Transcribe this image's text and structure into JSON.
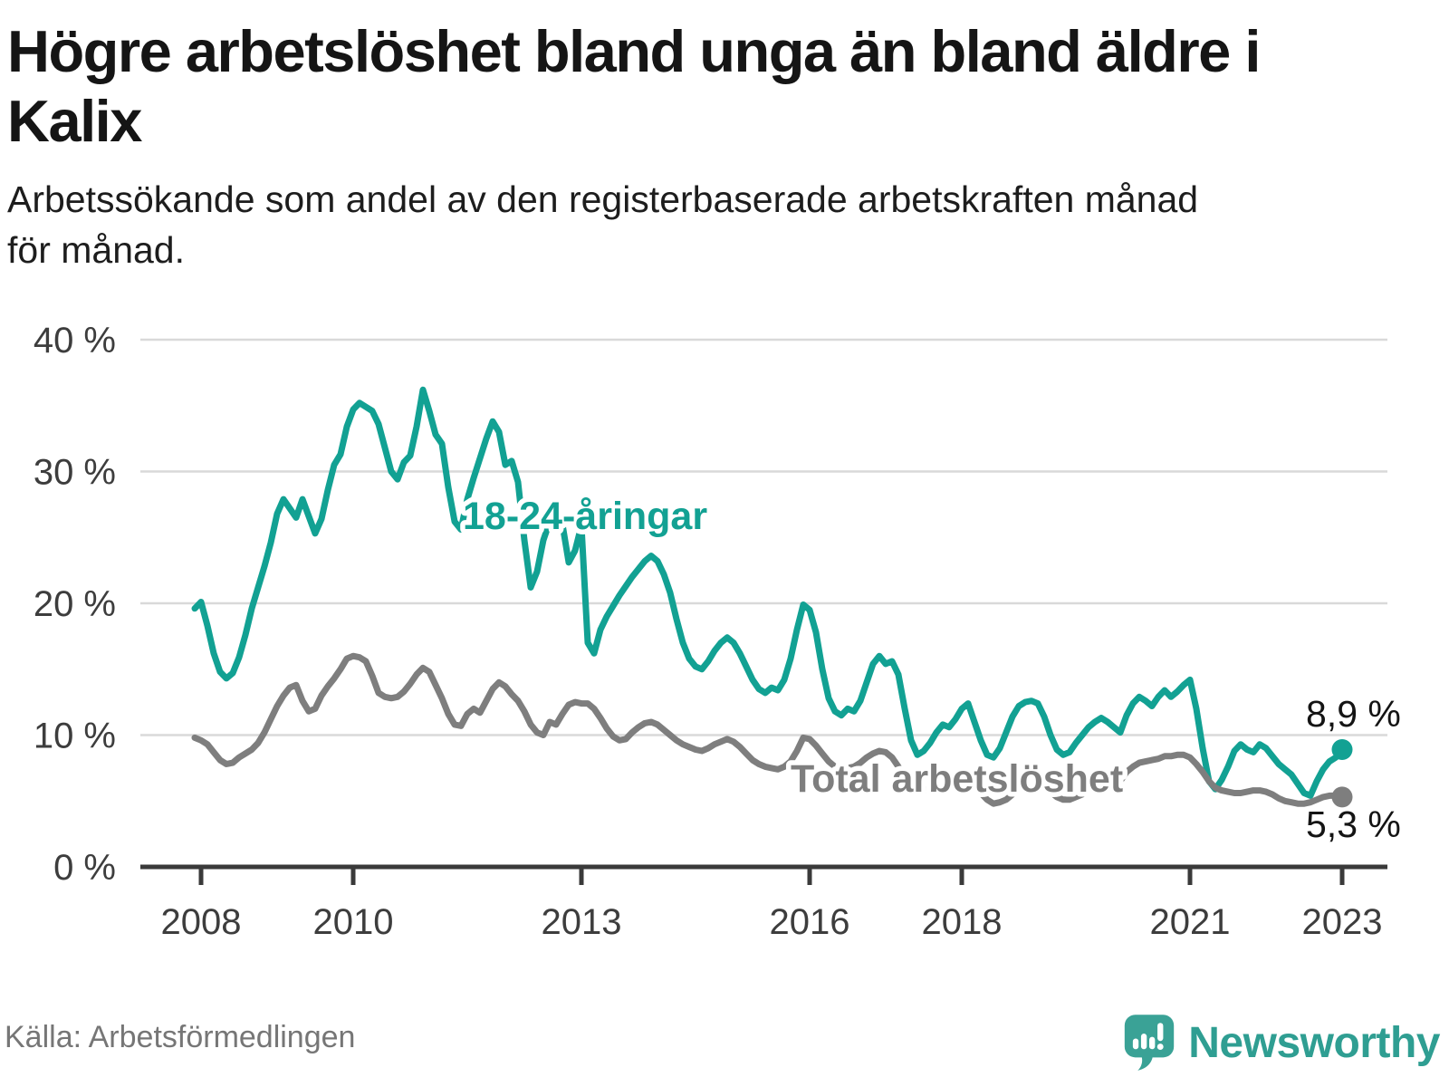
{
  "header": {
    "title_line1": "Högre arbetslöshet bland unga än bland äldre i",
    "title_line2": "Kalix",
    "subtitle_line1": "Arbetssökande som andel av den registerbaserade arbetskraften månad",
    "subtitle_line2": "för månad."
  },
  "footer": {
    "source": "Källa: Arbetsförmedlingen",
    "brand": "Newsworthy"
  },
  "chart_data": {
    "type": "line",
    "x_start": "2008-01",
    "x_end": "2023-02",
    "x_frequency": "monthly",
    "ylim": [
      0,
      42
    ],
    "grid": "horizontal",
    "colors": {
      "grid": "#d9d9d9",
      "axis": "#3a3a3a",
      "youth": "#12a193",
      "total": "#7e7e7e",
      "brand_teal": "#2f9e92"
    },
    "y_ticks": [
      {
        "label": "0 %",
        "value": 0
      },
      {
        "label": "10 %",
        "value": 10
      },
      {
        "label": "20 %",
        "value": 20
      },
      {
        "label": "30 %",
        "value": 30
      },
      {
        "label": "40 %",
        "value": 40
      }
    ],
    "x_ticks": [
      {
        "label": "2008",
        "year": 2008
      },
      {
        "label": "2010",
        "year": 2010
      },
      {
        "label": "2013",
        "year": 2013
      },
      {
        "label": "2016",
        "year": 2016
      },
      {
        "label": "2018",
        "year": 2018
      },
      {
        "label": "2021",
        "year": 2021
      },
      {
        "label": "2023",
        "year": 2023
      }
    ],
    "series": [
      {
        "id": "youth",
        "name": "18-24-åringar",
        "color": "#12a193",
        "end_label": "8,9 %",
        "end_value": 8.9,
        "values": [
          19.6,
          20.1,
          18.3,
          16.2,
          14.8,
          14.3,
          14.7,
          15.9,
          17.6,
          19.6,
          21.2,
          22.8,
          24.6,
          26.8,
          27.9,
          27.2,
          26.5,
          27.9,
          26.6,
          25.3,
          26.4,
          28.6,
          30.5,
          31.3,
          33.4,
          34.7,
          35.2,
          34.9,
          34.6,
          33.6,
          31.8,
          30.0,
          29.4,
          30.7,
          31.2,
          33.4,
          36.2,
          34.6,
          32.8,
          32.1,
          28.8,
          26.2,
          25.6,
          27.9,
          29.5,
          31.0,
          32.5,
          33.8,
          33.0,
          30.5,
          30.8,
          29.2,
          24.8,
          21.2,
          22.4,
          24.8,
          26.2,
          27.4,
          26.0,
          23.1,
          24.0,
          25.9,
          17.0,
          16.2,
          18.0,
          19.0,
          19.8,
          20.6,
          21.3,
          22.0,
          22.6,
          23.2,
          23.6,
          23.2,
          22.2,
          20.8,
          18.8,
          17.0,
          15.8,
          15.2,
          15.0,
          15.6,
          16.4,
          17.0,
          17.4,
          17.0,
          16.2,
          15.2,
          14.2,
          13.5,
          13.2,
          13.6,
          13.4,
          14.2,
          15.8,
          18.0,
          19.9,
          19.5,
          17.8,
          15.0,
          12.8,
          11.8,
          11.5,
          12.0,
          11.8,
          12.6,
          14.0,
          15.4,
          16.0,
          15.4,
          15.6,
          14.6,
          12.0,
          9.6,
          8.5,
          8.8,
          9.4,
          10.2,
          10.8,
          10.6,
          11.2,
          12.0,
          12.4,
          11.0,
          9.6,
          8.5,
          8.3,
          9.0,
          10.2,
          11.4,
          12.2,
          12.5,
          12.6,
          12.4,
          11.4,
          10.0,
          8.9,
          8.5,
          8.7,
          9.4,
          10.0,
          10.6,
          11.0,
          11.3,
          11.0,
          10.6,
          10.2,
          11.5,
          12.4,
          12.9,
          12.6,
          12.2,
          12.9,
          13.4,
          12.9,
          13.3,
          13.8,
          14.2,
          12.0,
          9.0,
          6.5,
          5.9,
          6.6,
          7.6,
          8.8,
          9.3,
          8.9,
          8.7,
          9.3,
          9.0,
          8.4,
          7.8,
          7.4,
          7.0,
          6.3,
          5.6,
          5.4,
          6.5,
          7.4,
          8.0,
          8.3,
          8.9
        ]
      },
      {
        "id": "total",
        "name": "Total arbetslöshet",
        "color": "#7e7e7e",
        "end_label": "5,3 %",
        "end_value": 5.3,
        "values": [
          9.8,
          9.6,
          9.3,
          8.7,
          8.1,
          7.8,
          7.9,
          8.3,
          8.6,
          8.9,
          9.4,
          10.2,
          11.2,
          12.2,
          13.0,
          13.6,
          13.8,
          12.6,
          11.8,
          12.0,
          13.0,
          13.7,
          14.3,
          15.0,
          15.8,
          16.0,
          15.9,
          15.6,
          14.5,
          13.2,
          12.9,
          12.8,
          12.9,
          13.3,
          13.9,
          14.6,
          15.1,
          14.8,
          13.8,
          12.8,
          11.6,
          10.8,
          10.7,
          11.6,
          12.0,
          11.7,
          12.6,
          13.5,
          14.0,
          13.7,
          13.1,
          12.6,
          11.8,
          10.8,
          10.2,
          10.0,
          11.0,
          10.8,
          11.6,
          12.3,
          12.5,
          12.4,
          12.4,
          12.0,
          11.3,
          10.5,
          9.9,
          9.6,
          9.7,
          10.2,
          10.6,
          10.9,
          11.0,
          10.8,
          10.4,
          10.0,
          9.6,
          9.3,
          9.1,
          8.9,
          8.8,
          9.0,
          9.3,
          9.5,
          9.7,
          9.5,
          9.1,
          8.6,
          8.1,
          7.8,
          7.6,
          7.5,
          7.4,
          7.6,
          8.0,
          8.8,
          9.8,
          9.7,
          9.2,
          8.6,
          8.0,
          7.6,
          7.4,
          7.5,
          7.6,
          7.9,
          8.3,
          8.6,
          8.8,
          8.7,
          8.3,
          7.6,
          6.8,
          6.1,
          5.7,
          5.8,
          6.0,
          6.3,
          6.6,
          6.9,
          7.1,
          7.0,
          6.7,
          6.2,
          5.6,
          5.1,
          4.8,
          4.9,
          5.1,
          5.5,
          5.9,
          6.2,
          6.4,
          6.3,
          6.0,
          5.7,
          5.3,
          5.1,
          5.1,
          5.3,
          5.5,
          5.8,
          6.1,
          6.3,
          6.4,
          6.3,
          6.5,
          7.2,
          7.6,
          7.9,
          8.0,
          8.1,
          8.2,
          8.4,
          8.4,
          8.5,
          8.5,
          8.3,
          7.8,
          7.2,
          6.5,
          6.0,
          5.8,
          5.7,
          5.6,
          5.6,
          5.7,
          5.8,
          5.8,
          5.7,
          5.5,
          5.2,
          5.0,
          4.9,
          4.8,
          4.8,
          4.9,
          5.1,
          5.3,
          5.4,
          5.4,
          5.3
        ]
      }
    ]
  }
}
